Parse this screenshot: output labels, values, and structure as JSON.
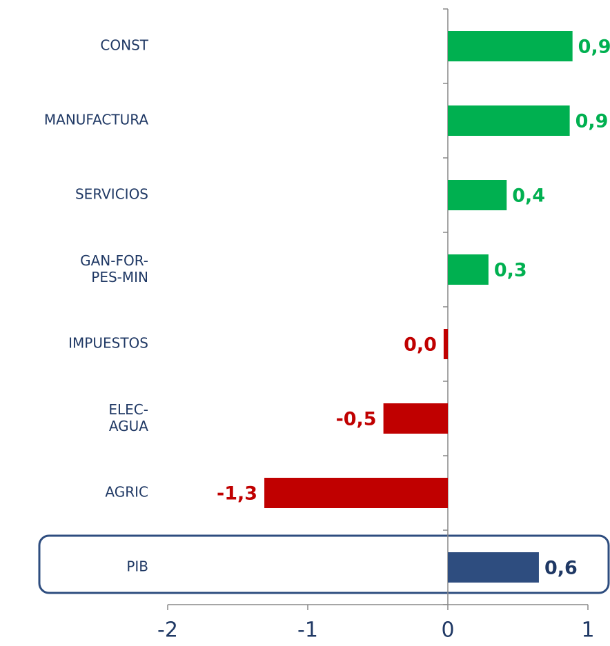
{
  "chart_data": {
    "type": "bar",
    "orientation": "horizontal",
    "categories": [
      "CONST",
      "MANUFACTURA",
      "SERVICIOS",
      "GAN-FOR-\nPES-MIN",
      "IMPUESTOS",
      "ELEC-\nAGUA",
      "AGRIC",
      "PIB"
    ],
    "values": [
      0.89,
      0.87,
      0.42,
      0.29,
      -0.03,
      -0.46,
      -1.31,
      0.65
    ],
    "value_labels": [
      "0,9",
      "0,9",
      "0,4",
      "0,3",
      "0,0",
      "-0,5",
      "-1,3",
      "0,6"
    ],
    "colors": [
      "#00b050",
      "#00b050",
      "#00b050",
      "#00b050",
      "#c00000",
      "#c00000",
      "#c00000",
      "#2e4d7f"
    ],
    "xlim": [
      -2,
      1
    ],
    "xticks": [
      -2,
      -1,
      0,
      1
    ],
    "grid": false
  }
}
